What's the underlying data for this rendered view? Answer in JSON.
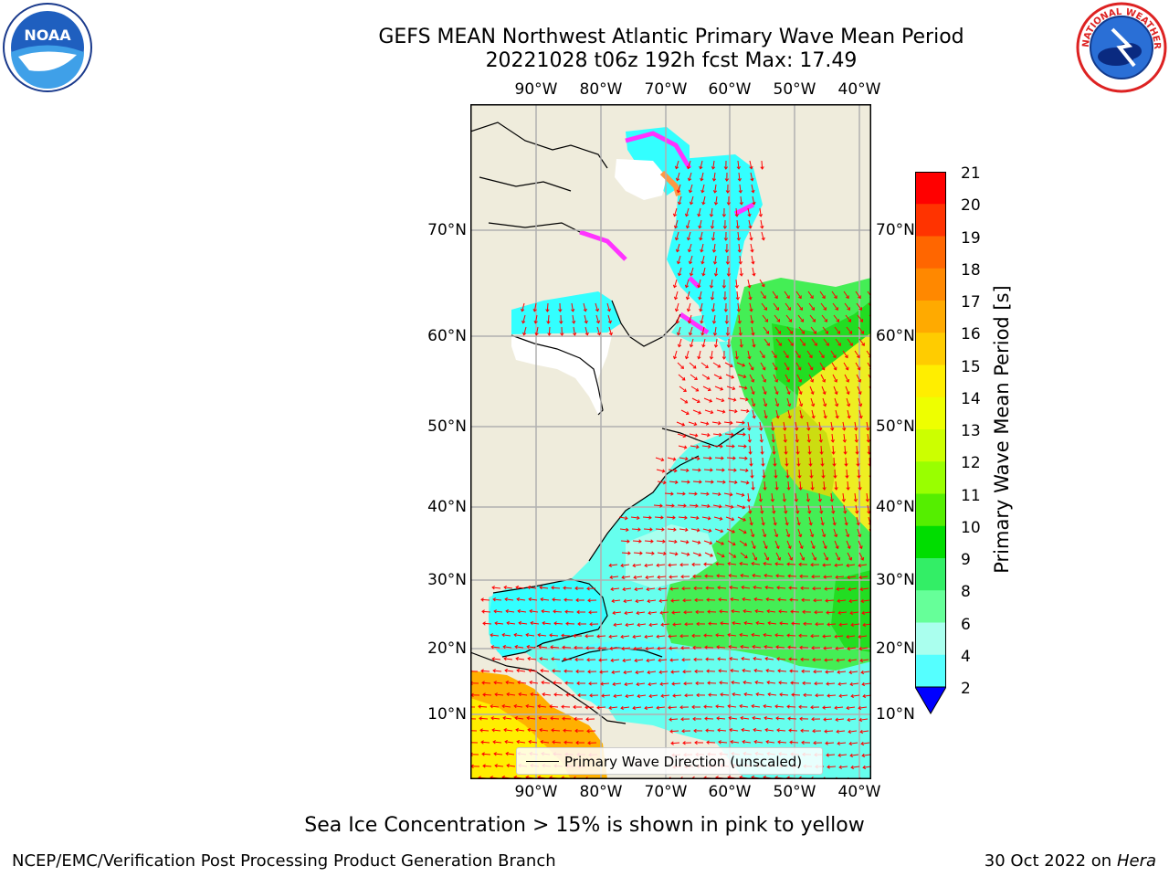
{
  "title": {
    "line1": "GEFS MEAN Northwest Atlantic Primary Wave Mean Period",
    "line2": "20221028 t06z 192h fcst   Max: 17.49"
  },
  "logos": {
    "left": {
      "icon": "noaa-logo",
      "text": "NOAA"
    },
    "right": {
      "icon": "nws-logo",
      "ring_text": "NATIONAL WEATHER SERVICE"
    }
  },
  "map": {
    "lon_labels": [
      "90°W",
      "80°W",
      "70°W",
      "60°W",
      "50°W",
      "40°W"
    ],
    "lat_labels": [
      "70°N",
      "60°N",
      "50°N",
      "40°N",
      "30°N",
      "20°N",
      "10°N"
    ],
    "legend": "Primary Wave Direction (unscaled)",
    "colors": {
      "land": "#efecdc",
      "ice_free_white": "#ffffff",
      "grid": "#b0b0b0",
      "arrow": "#ff0000",
      "ice": "#ff33ff"
    }
  },
  "colorbar": {
    "label": "Primary Wave Mean Period [s]",
    "ticks": [
      "21",
      "20",
      "19",
      "18",
      "17",
      "16",
      "15",
      "14",
      "13",
      "12",
      "11",
      "10",
      "9",
      "8",
      "6",
      "4",
      "2"
    ],
    "colors": [
      "#ff0000",
      "#ff3300",
      "#ff6600",
      "#ff8800",
      "#ffaa00",
      "#ffcc00",
      "#ffee00",
      "#eeff00",
      "#ccff00",
      "#99ff00",
      "#55ee00",
      "#00dd00",
      "#33ee66",
      "#66ff99",
      "#aaffee",
      "#55ffff",
      "#00ffff",
      "#0077ff"
    ],
    "extend_color": "#0000ff"
  },
  "note": "Sea Ice Concentration > 15% is shown in pink to yellow",
  "footer": {
    "left": "NCEP/EMC/Verification Post Processing Product Generation Branch",
    "date": "30 Oct 2022 on ",
    "machine": "Hera"
  }
}
